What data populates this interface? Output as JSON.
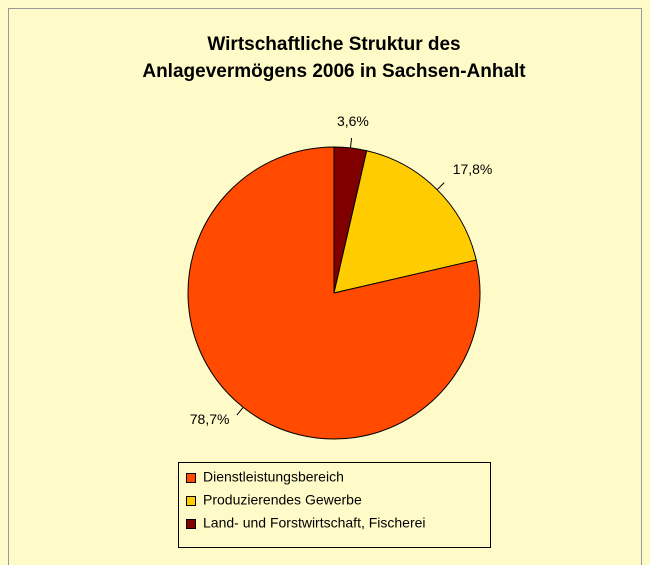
{
  "chart_data": {
    "type": "pie",
    "title": [
      "Wirtschaftliche Struktur des",
      "Anlagevermögens 2006 in Sachsen-Anhalt"
    ],
    "categories": [
      "Dienstleistungsbereich",
      "Produzierendes Gewerbe",
      "Land- und Forstwirtschaft, Fischerei"
    ],
    "values": [
      78.7,
      17.8,
      3.6
    ],
    "value_labels": [
      "78,7%",
      "17,8%",
      "3,6%"
    ],
    "colors": [
      "#ff4a00",
      "#ffcc00",
      "#800000"
    ]
  }
}
